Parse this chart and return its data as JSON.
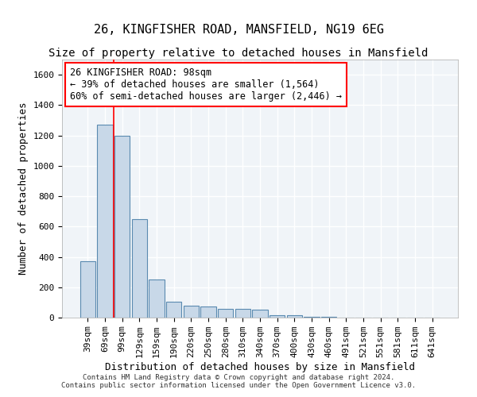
{
  "title1": "26, KINGFISHER ROAD, MANSFIELD, NG19 6EG",
  "title2": "Size of property relative to detached houses in Mansfield",
  "xlabel": "Distribution of detached houses by size in Mansfield",
  "ylabel": "Number of detached properties",
  "bar_color": "#c8d8e8",
  "bar_edge_color": "#5a8ab0",
  "categories": [
    "39sqm",
    "69sqm",
    "99sqm",
    "129sqm",
    "159sqm",
    "190sqm",
    "220sqm",
    "250sqm",
    "280sqm",
    "310sqm",
    "340sqm",
    "370sqm",
    "400sqm",
    "430sqm",
    "460sqm",
    "491sqm",
    "521sqm",
    "551sqm",
    "581sqm",
    "611sqm",
    "641sqm"
  ],
  "values": [
    370,
    1270,
    1200,
    650,
    250,
    105,
    80,
    75,
    55,
    55,
    50,
    15,
    15,
    5,
    5,
    2,
    2,
    0,
    0,
    0,
    2
  ],
  "ylim": [
    0,
    1700
  ],
  "yticks": [
    0,
    200,
    400,
    600,
    800,
    1000,
    1200,
    1400,
    1600
  ],
  "annotation_text": "26 KINGFISHER ROAD: 98sqm\n← 39% of detached houses are smaller (1,564)\n60% of semi-detached houses are larger (2,446) →",
  "footer1": "Contains HM Land Registry data © Crown copyright and database right 2024.",
  "footer2": "Contains public sector information licensed under the Open Government Licence v3.0.",
  "background_color": "#f0f4f8",
  "grid_color": "#ffffff",
  "title1_fontsize": 11,
  "title2_fontsize": 10,
  "tick_fontsize": 8,
  "annotation_fontsize": 8.5
}
